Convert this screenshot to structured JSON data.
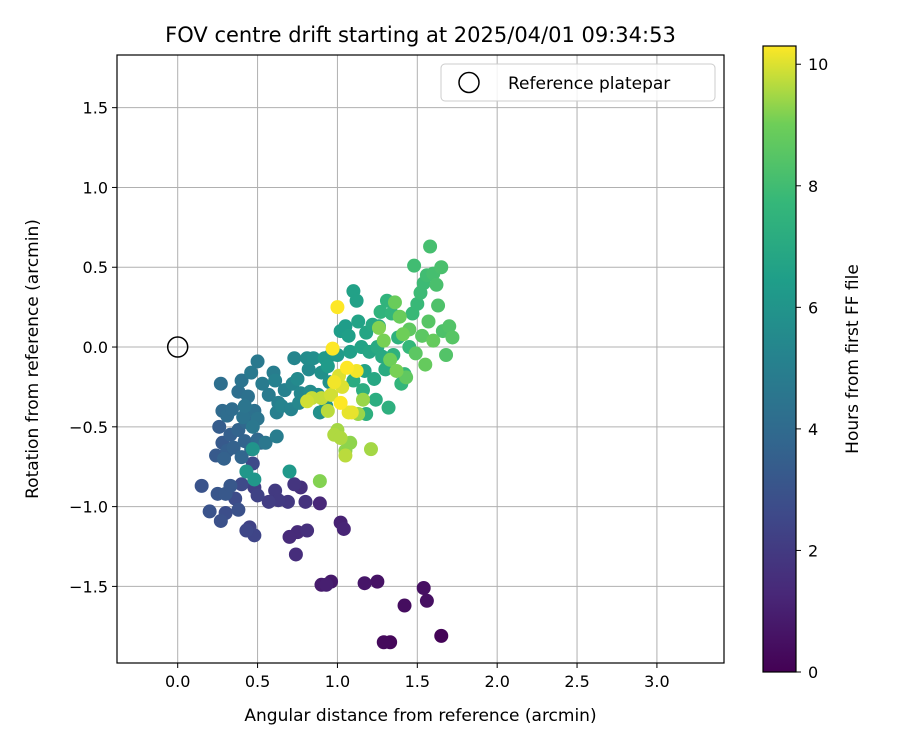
{
  "chart_data": {
    "type": "scatter",
    "title": "FOV centre drift starting at 2025/04/01 09:34:53",
    "xlabel": "Angular distance from reference (arcmin)",
    "ylabel": "Rotation from reference (arcmin)",
    "xlim": [
      -0.38,
      3.42
    ],
    "ylim": [
      -1.98,
      1.83
    ],
    "xticks": [
      "0.0",
      "0.5",
      "1.0",
      "1.5",
      "2.0",
      "2.5",
      "3.0"
    ],
    "xtick_values": [
      0.0,
      0.5,
      1.0,
      1.5,
      2.0,
      2.5,
      3.0
    ],
    "yticks": [
      "1.5",
      "1.0",
      "0.5",
      "0.0",
      "−0.5",
      "−1.0",
      "−1.5"
    ],
    "ytick_values": [
      1.5,
      1.0,
      0.5,
      0.0,
      -0.5,
      -1.0,
      -1.5
    ],
    "grid": true,
    "legend": {
      "placement": "top-right",
      "entries": [
        "Reference platepar"
      ]
    },
    "colormap": "viridis",
    "colorbar": {
      "label": "Hours from first FF file",
      "range": [
        0,
        10.3
      ],
      "ticks": [
        "0",
        "2",
        "4",
        "6",
        "8",
        "10"
      ],
      "tick_values": [
        0,
        2,
        4,
        6,
        8,
        10
      ]
    },
    "reference_point": {
      "x": 0.0,
      "y": 0.0
    },
    "series": [
      {
        "name": "Reference platepar",
        "points": [
          [
            0.0,
            0.0
          ]
        ]
      }
    ],
    "points": [
      [
        1.65,
        -1.81,
        0.1
      ],
      [
        1.33,
        -1.85,
        0.2
      ],
      [
        1.29,
        -1.85,
        0.3
      ],
      [
        1.42,
        -1.62,
        0.4
      ],
      [
        1.56,
        -1.59,
        0.5
      ],
      [
        1.54,
        -1.51,
        0.5
      ],
      [
        1.25,
        -1.47,
        0.6
      ],
      [
        1.17,
        -1.48,
        0.7
      ],
      [
        0.96,
        -1.47,
        0.8
      ],
      [
        0.9,
        -1.49,
        0.9
      ],
      [
        0.93,
        -1.49,
        1.0
      ],
      [
        1.02,
        -1.1,
        1.1
      ],
      [
        1.04,
        -1.14,
        1.2
      ],
      [
        0.89,
        -0.98,
        1.3
      ],
      [
        0.75,
        -1.16,
        1.4
      ],
      [
        0.7,
        -1.19,
        1.4
      ],
      [
        0.74,
        -1.3,
        1.5
      ],
      [
        0.81,
        -1.15,
        1.6
      ],
      [
        0.77,
        -0.88,
        1.6
      ],
      [
        0.8,
        -0.97,
        1.7
      ],
      [
        0.73,
        -0.86,
        1.8
      ],
      [
        0.69,
        -0.97,
        1.9
      ],
      [
        0.61,
        -0.9,
        2.0
      ],
      [
        0.63,
        -0.96,
        2.0
      ],
      [
        0.57,
        -0.97,
        2.1
      ],
      [
        0.48,
        -0.88,
        2.2
      ],
      [
        0.5,
        -0.93,
        2.3
      ],
      [
        0.45,
        -1.13,
        2.3
      ],
      [
        0.48,
        -1.18,
        2.4
      ],
      [
        0.43,
        -1.15,
        2.5
      ],
      [
        0.47,
        -0.73,
        2.6
      ],
      [
        0.4,
        -0.86,
        2.6
      ],
      [
        0.36,
        -0.95,
        2.7
      ],
      [
        0.3,
        -1.04,
        2.8
      ],
      [
        0.27,
        -1.09,
        2.9
      ],
      [
        0.38,
        -1.02,
        2.9
      ],
      [
        0.2,
        -1.03,
        3.0
      ],
      [
        0.15,
        -0.87,
        3.0
      ],
      [
        0.25,
        -0.92,
        3.1
      ],
      [
        0.3,
        -0.92,
        3.2
      ],
      [
        0.33,
        -0.87,
        3.2
      ],
      [
        0.24,
        -0.68,
        3.3
      ],
      [
        0.28,
        -0.6,
        3.3
      ],
      [
        0.26,
        -0.5,
        3.4
      ],
      [
        0.33,
        -0.55,
        3.5
      ],
      [
        0.31,
        -0.65,
        3.5
      ],
      [
        0.29,
        -0.7,
        3.6
      ],
      [
        0.35,
        -0.63,
        3.6
      ],
      [
        0.38,
        -0.52,
        3.7
      ],
      [
        0.42,
        -0.59,
        3.7
      ],
      [
        0.4,
        -0.69,
        3.8
      ],
      [
        0.46,
        -0.64,
        3.8
      ],
      [
        0.43,
        -0.47,
        3.9
      ],
      [
        0.5,
        -0.58,
        3.9
      ],
      [
        0.52,
        -0.6,
        4.0
      ],
      [
        0.28,
        -0.4,
        4.0
      ],
      [
        0.31,
        -0.43,
        4.1
      ],
      [
        0.34,
        -0.39,
        4.1
      ],
      [
        0.38,
        -0.28,
        4.2
      ],
      [
        0.27,
        -0.23,
        4.2
      ],
      [
        0.44,
        -0.31,
        4.3
      ],
      [
        0.48,
        -0.4,
        4.3
      ],
      [
        0.41,
        -0.44,
        4.4
      ],
      [
        0.4,
        -0.21,
        4.4
      ],
      [
        0.42,
        -0.37,
        4.5
      ],
      [
        0.5,
        -0.45,
        4.5
      ],
      [
        0.47,
        -0.5,
        4.6
      ],
      [
        0.55,
        -0.6,
        4.6
      ],
      [
        0.5,
        -0.09,
        4.7
      ],
      [
        0.46,
        -0.16,
        4.7
      ],
      [
        0.53,
        -0.23,
        4.8
      ],
      [
        0.57,
        -0.3,
        4.8
      ],
      [
        0.6,
        -0.16,
        4.9
      ],
      [
        0.62,
        -0.56,
        4.9
      ],
      [
        0.63,
        -0.35,
        5.0
      ],
      [
        0.62,
        -0.41,
        5.0
      ],
      [
        0.61,
        -0.21,
        5.1
      ],
      [
        0.67,
        -0.27,
        5.1
      ],
      [
        0.65,
        -0.37,
        5.2
      ],
      [
        0.71,
        -0.39,
        5.2
      ],
      [
        0.72,
        -0.23,
        5.3
      ],
      [
        0.73,
        -0.07,
        5.3
      ],
      [
        0.76,
        -0.35,
        5.4
      ],
      [
        0.77,
        -0.29,
        5.4
      ],
      [
        0.75,
        -0.2,
        5.5
      ],
      [
        0.82,
        -0.14,
        5.5
      ],
      [
        0.81,
        -0.07,
        5.6
      ],
      [
        0.83,
        -0.28,
        5.6
      ],
      [
        0.85,
        -0.07,
        5.7
      ],
      [
        0.88,
        -0.3,
        5.7
      ],
      [
        0.89,
        -0.41,
        5.8
      ],
      [
        0.9,
        -0.16,
        5.8
      ],
      [
        0.93,
        -0.37,
        5.9
      ],
      [
        0.95,
        -0.22,
        5.9
      ],
      [
        0.96,
        -0.05,
        6.0
      ],
      [
        0.47,
        -0.64,
        6.0
      ],
      [
        0.43,
        -0.78,
        6.1
      ],
      [
        0.48,
        -0.83,
        6.1
      ],
      [
        0.7,
        -0.78,
        6.2
      ],
      [
        0.92,
        -0.07,
        6.2
      ],
      [
        0.94,
        -0.12,
        6.3
      ],
      [
        1.0,
        -0.05,
        6.3
      ],
      [
        1.02,
        0.1,
        6.4
      ],
      [
        1.05,
        0.13,
        6.4
      ],
      [
        1.07,
        0.07,
        6.5
      ],
      [
        1.08,
        -0.03,
        6.5
      ],
      [
        1.1,
        0.35,
        6.6
      ],
      [
        1.12,
        0.29,
        6.6
      ],
      [
        1.13,
        0.16,
        6.7
      ],
      [
        1.15,
        0.0,
        6.7
      ],
      [
        1.17,
        -0.15,
        6.7
      ],
      [
        1.18,
        0.09,
        6.8
      ],
      [
        1.2,
        -0.03,
        6.8
      ],
      [
        1.22,
        0.14,
        6.9
      ],
      [
        1.23,
        -0.2,
        6.9
      ],
      [
        1.25,
        0.0,
        7.0
      ],
      [
        1.26,
        0.13,
        7.0
      ],
      [
        1.28,
        -0.06,
        7.0
      ],
      [
        1.3,
        -0.14,
        7.1
      ],
      [
        1.1,
        -0.21,
        7.1
      ],
      [
        1.16,
        -0.27,
        7.2
      ],
      [
        1.24,
        -0.33,
        7.2
      ],
      [
        1.32,
        -0.38,
        7.3
      ],
      [
        1.18,
        -0.42,
        7.3
      ],
      [
        1.35,
        -0.05,
        7.4
      ],
      [
        1.38,
        0.06,
        7.4
      ],
      [
        1.27,
        0.22,
        7.5
      ],
      [
        1.31,
        0.29,
        7.5
      ],
      [
        1.34,
        0.21,
        7.6
      ],
      [
        1.4,
        -0.23,
        7.6
      ],
      [
        1.42,
        -0.17,
        7.7
      ],
      [
        1.45,
        0.0,
        7.7
      ],
      [
        1.47,
        0.21,
        7.8
      ],
      [
        1.5,
        0.27,
        7.8
      ],
      [
        1.52,
        0.34,
        7.9
      ],
      [
        1.54,
        0.4,
        7.9
      ],
      [
        1.56,
        0.45,
        8.0
      ],
      [
        1.48,
        0.51,
        8.0
      ],
      [
        1.58,
        0.63,
        8.1
      ],
      [
        1.6,
        0.46,
        8.1
      ],
      [
        1.62,
        0.39,
        8.2
      ],
      [
        1.65,
        0.5,
        8.2
      ],
      [
        1.63,
        0.26,
        8.3
      ],
      [
        1.66,
        0.1,
        8.3
      ],
      [
        1.68,
        -0.05,
        8.4
      ],
      [
        1.7,
        0.13,
        8.4
      ],
      [
        1.72,
        0.06,
        8.5
      ],
      [
        1.57,
        0.16,
        8.5
      ],
      [
        1.53,
        0.07,
        8.6
      ],
      [
        1.49,
        -0.04,
        8.6
      ],
      [
        1.45,
        0.11,
        8.7
      ],
      [
        1.43,
        -0.19,
        8.7
      ],
      [
        1.55,
        -0.11,
        8.8
      ],
      [
        1.6,
        0.04,
        8.8
      ],
      [
        1.36,
        0.28,
        8.9
      ],
      [
        1.39,
        0.19,
        8.9
      ],
      [
        1.41,
        0.08,
        9.0
      ],
      [
        1.33,
        -0.08,
        9.0
      ],
      [
        1.37,
        -0.15,
        9.1
      ],
      [
        1.29,
        0.04,
        9.1
      ],
      [
        1.26,
        0.12,
        9.2
      ],
      [
        0.89,
        -0.84,
        9.2
      ],
      [
        1.05,
        -0.65,
        9.3
      ],
      [
        1.08,
        -0.6,
        9.3
      ],
      [
        1.13,
        -0.42,
        9.4
      ],
      [
        1.16,
        -0.33,
        9.4
      ],
      [
        1.21,
        -0.64,
        9.5
      ],
      [
        1.0,
        -0.52,
        9.5
      ],
      [
        0.98,
        -0.55,
        9.6
      ],
      [
        1.02,
        -0.57,
        9.6
      ],
      [
        1.05,
        -0.68,
        9.7
      ],
      [
        0.94,
        -0.4,
        9.7
      ],
      [
        0.9,
        -0.32,
        9.8
      ],
      [
        0.84,
        -0.32,
        9.8
      ],
      [
        0.81,
        -0.34,
        9.9
      ],
      [
        0.96,
        -0.3,
        9.9
      ],
      [
        1.01,
        -0.18,
        10.0
      ],
      [
        1.03,
        -0.25,
        10.0
      ],
      [
        1.07,
        -0.41,
        10.1
      ],
      [
        1.09,
        -0.41,
        10.1
      ],
      [
        1.12,
        -0.15,
        10.2
      ],
      [
        0.98,
        -0.22,
        10.2
      ],
      [
        1.02,
        -0.35,
        10.3
      ],
      [
        1.06,
        -0.13,
        10.3
      ],
      [
        1.0,
        0.25,
        10.3
      ],
      [
        0.97,
        -0.01,
        10.3
      ]
    ]
  }
}
